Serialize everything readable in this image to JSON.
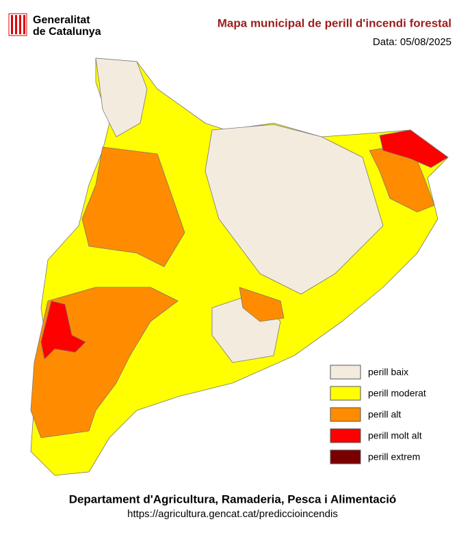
{
  "header": {
    "logo_text": [
      "Generalitat",
      "de Catalunya"
    ],
    "title": "Mapa municipal de perill d'incendi forestal",
    "date": "Data: 05/08/2025"
  },
  "legend": [
    {
      "label": "perill baix",
      "color": "#f4ebdf"
    },
    {
      "label": "perill moderat",
      "color": "#ffff00"
    },
    {
      "label": "perill alt",
      "color": "#ff8c00"
    },
    {
      "label": "perill molt alt",
      "color": "#ff0000"
    },
    {
      "label": "perill extrem",
      "color": "#7a0000"
    }
  ],
  "footer": {
    "department": "Departament d'Agricultura, Ramaderia, Pesca i Alimentació",
    "url": "https://agricultura.gencat.cat/prediccioincendis"
  }
}
